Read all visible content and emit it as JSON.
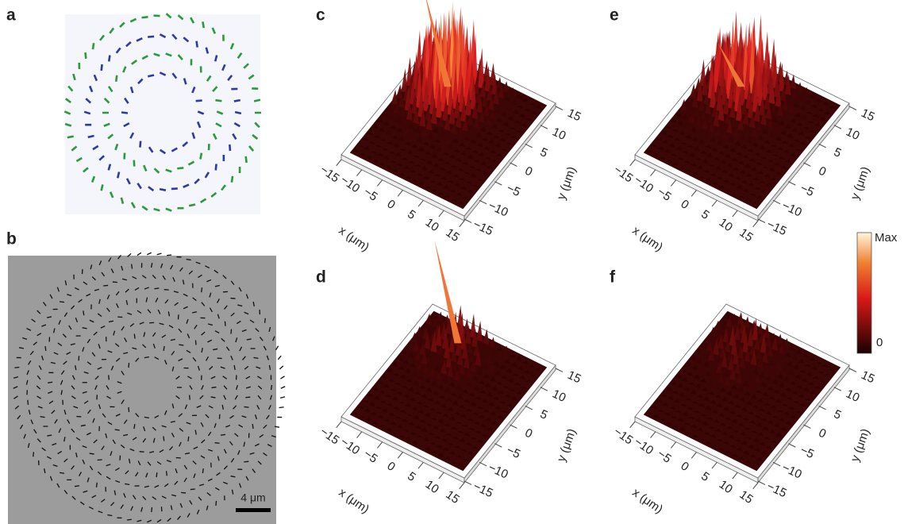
{
  "panels": {
    "a": {
      "label": "a"
    },
    "b": {
      "label": "b",
      "scale_bar": "4 μm"
    },
    "surfaces": [
      {
        "label": "c",
        "x_label": "x (μm)",
        "y_label": "y (μm)",
        "xlim": [
          -15,
          15
        ],
        "ylim": [
          -15,
          15
        ],
        "xticks": [
          {
            "value": -15,
            "label": "−15"
          },
          {
            "value": -10,
            "label": "−10"
          },
          {
            "value": -5,
            "label": "−5"
          },
          0,
          5,
          10,
          15
        ],
        "yticks": [
          {
            "value": -15,
            "label": "−15"
          },
          {
            "value": -10,
            "label": "−10"
          },
          {
            "value": -5,
            "label": "−5"
          },
          0,
          5,
          10,
          15
        ]
      },
      {
        "label": "d",
        "x_label": "x (μm)",
        "y_label": "y (μm)",
        "xlim": [
          -15,
          15
        ],
        "ylim": [
          -15,
          15
        ],
        "xticks": [
          {
            "value": -15,
            "label": "−15"
          },
          {
            "value": -10,
            "label": "−10"
          },
          {
            "value": -5,
            "label": "−5"
          },
          0,
          5,
          10,
          15
        ],
        "yticks": [
          {
            "value": -15,
            "label": "−15"
          },
          {
            "value": -10,
            "label": "−10"
          },
          {
            "value": -5,
            "label": "−5"
          },
          0,
          5,
          10,
          15
        ]
      },
      {
        "label": "e",
        "x_label": "x (μm)",
        "y_label": "y (μm)",
        "xlim": [
          -15,
          15
        ],
        "ylim": [
          -15,
          15
        ],
        "xticks": [
          {
            "value": -15,
            "label": "−15"
          },
          {
            "value": -10,
            "label": "−10"
          },
          {
            "value": -5,
            "label": "−5"
          },
          0,
          5,
          10,
          15
        ],
        "yticks": [
          {
            "value": -15,
            "label": "−15"
          },
          {
            "value": -10,
            "label": "−10"
          },
          {
            "value": -5,
            "label": "−5"
          },
          0,
          5,
          10,
          15
        ]
      },
      {
        "label": "f",
        "x_label": "x (μm)",
        "y_label": "y (μm)",
        "xlim": [
          -15,
          15
        ],
        "ylim": [
          -15,
          15
        ],
        "xticks": [
          {
            "value": -15,
            "label": "−15"
          },
          {
            "value": -10,
            "label": "−10"
          },
          {
            "value": -5,
            "label": "−5"
          },
          0,
          5,
          10,
          15
        ],
        "yticks": [
          {
            "value": -15,
            "label": "−15"
          },
          {
            "value": -10,
            "label": "−10"
          },
          {
            "value": -5,
            "label": "−5"
          },
          0,
          5,
          10,
          15
        ]
      }
    ],
    "colorbar": {
      "max_label": "Max",
      "min_label": "0"
    }
  }
}
